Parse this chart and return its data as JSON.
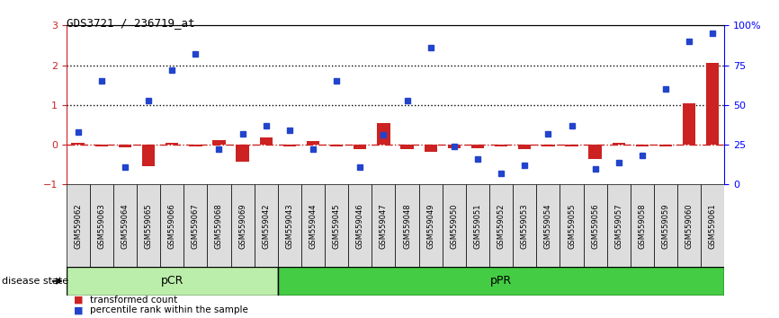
{
  "title": "GDS3721 / 236719_at",
  "samples": [
    "GSM559062",
    "GSM559063",
    "GSM559064",
    "GSM559065",
    "GSM559066",
    "GSM559067",
    "GSM559068",
    "GSM559069",
    "GSM559042",
    "GSM559043",
    "GSM559044",
    "GSM559045",
    "GSM559046",
    "GSM559047",
    "GSM559048",
    "GSM559049",
    "GSM559050",
    "GSM559051",
    "GSM559052",
    "GSM559053",
    "GSM559054",
    "GSM559055",
    "GSM559056",
    "GSM559057",
    "GSM559058",
    "GSM559059",
    "GSM559060",
    "GSM559061"
  ],
  "transformed_count": [
    0.05,
    -0.05,
    -0.06,
    -0.55,
    0.05,
    -0.04,
    0.12,
    -0.42,
    0.18,
    -0.05,
    0.1,
    -0.04,
    -0.12,
    0.55,
    -0.12,
    -0.18,
    -0.08,
    -0.1,
    -0.04,
    -0.12,
    -0.05,
    -0.04,
    -0.35,
    0.04,
    -0.04,
    -0.04,
    1.05,
    2.05
  ],
  "percentile_rank_pct": [
    33,
    65,
    11,
    53,
    72,
    82,
    22,
    32,
    37,
    34,
    22,
    65,
    11,
    31,
    53,
    86,
    24,
    16,
    7,
    12,
    32,
    37,
    10,
    14,
    18,
    60,
    90,
    95
  ],
  "pCR_count": 9,
  "pPR_count": 19,
  "ylim_left": [
    -1,
    3
  ],
  "ylim_right": [
    0,
    100
  ],
  "bar_color": "#cc2222",
  "dot_color": "#2244cc",
  "pCR_color": "#bbeeaa",
  "pPR_color": "#44cc44",
  "background_color": "#ffffff",
  "legend_red": "transformed count",
  "legend_blue": "percentile rank within the sample",
  "disease_state_label": "disease state"
}
